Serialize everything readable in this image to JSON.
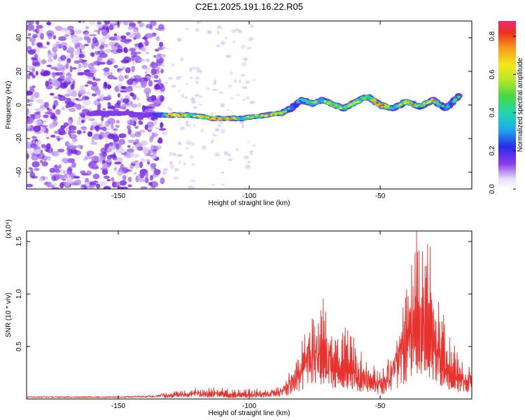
{
  "title": "C2E1.2025.191.16.22.R05",
  "chart_data": [
    {
      "type": "heatmap",
      "xlabel": "Height of straight line (km)",
      "ylabel": "Frequency (Hz)",
      "xlim": [
        -185,
        -15
      ],
      "ylim": [
        -50,
        50
      ],
      "x_ticks": [
        -150,
        -100,
        -50
      ],
      "y_ticks": [
        -40,
        -20,
        0,
        20,
        40
      ],
      "colorbar": {
        "label": "Normalized spectral amplitude",
        "range": [
          0,
          0.88
        ],
        "ticks": [
          0.0,
          0.2,
          0.4,
          0.6,
          0.8
        ]
      },
      "signal_track": [
        {
          "x": -161,
          "y": -5,
          "amp": 0.3
        },
        {
          "x": -157,
          "y": -5,
          "amp": 0.25
        },
        {
          "x": -153,
          "y": -5,
          "amp": 0.3
        },
        {
          "x": -148,
          "y": -5,
          "amp": 0.25
        },
        {
          "x": -140,
          "y": -6,
          "amp": 0.25
        },
        {
          "x": -133,
          "y": -6,
          "amp": 0.5
        },
        {
          "x": -128,
          "y": -6,
          "amp": 0.85
        },
        {
          "x": -123,
          "y": -6,
          "amp": 0.6
        },
        {
          "x": -118,
          "y": -7,
          "amp": 0.7
        },
        {
          "x": -113,
          "y": -8,
          "amp": 0.8
        },
        {
          "x": -108,
          "y": -8,
          "amp": 0.75
        },
        {
          "x": -103,
          "y": -8,
          "amp": 0.55
        },
        {
          "x": -98,
          "y": -7,
          "amp": 0.6
        },
        {
          "x": -93,
          "y": -6,
          "amp": 0.65
        },
        {
          "x": -88,
          "y": -5,
          "amp": 0.7
        },
        {
          "x": -84,
          "y": -2,
          "amp": 0.4
        },
        {
          "x": -80,
          "y": 3,
          "amp": 0.5
        },
        {
          "x": -76,
          "y": 1,
          "amp": 0.6
        },
        {
          "x": -72,
          "y": 3,
          "amp": 0.55
        },
        {
          "x": -68,
          "y": 0,
          "amp": 0.65
        },
        {
          "x": -64,
          "y": -2,
          "amp": 0.6
        },
        {
          "x": -60,
          "y": 1,
          "amp": 0.7
        },
        {
          "x": -55,
          "y": 5,
          "amp": 0.6
        },
        {
          "x": -50,
          "y": 0,
          "amp": 0.88
        },
        {
          "x": -45,
          "y": -2,
          "amp": 0.5
        },
        {
          "x": -40,
          "y": 2,
          "amp": 0.7
        },
        {
          "x": -35,
          "y": -1,
          "amp": 0.6
        },
        {
          "x": -30,
          "y": 3,
          "amp": 0.65
        },
        {
          "x": -25,
          "y": -2,
          "amp": 0.5
        },
        {
          "x": -20,
          "y": 5,
          "amp": 0.55
        }
      ]
    },
    {
      "type": "line",
      "xlabel": "Height of straight line (km)",
      "ylabel": "SNR (10 * v/v)",
      "y_multiplier_label": "(x10⁴)",
      "xlim": [
        -185,
        -15
      ],
      "ylim": [
        0,
        1.6
      ],
      "x_ticks": [
        -150,
        -100,
        -50
      ],
      "y_ticks": [
        0.5,
        1.0,
        1.5
      ],
      "series": [
        {
          "color": "#e8322e",
          "envelope": {
            "x": [
              -185,
              -150,
              -135,
              -130,
              -125,
              -115,
              -105,
              -95,
              -88,
              -85,
              -80,
              -76,
              -72,
              -70,
              -66,
              -62,
              -58,
              -54,
              -50,
              -46,
              -42,
              -38,
              -35,
              -32,
              -30,
              -27,
              -24,
              -20,
              -15
            ],
            "y": [
              0.02,
              0.02,
              0.03,
              0.07,
              0.09,
              0.11,
              0.08,
              0.09,
              0.12,
              0.25,
              0.55,
              0.75,
              0.88,
              0.8,
              0.55,
              0.65,
              0.45,
              0.4,
              0.25,
              0.45,
              0.8,
              1.3,
              1.55,
              1.45,
              1.2,
              0.85,
              0.55,
              0.4,
              0.35
            ]
          }
        }
      ]
    }
  ]
}
